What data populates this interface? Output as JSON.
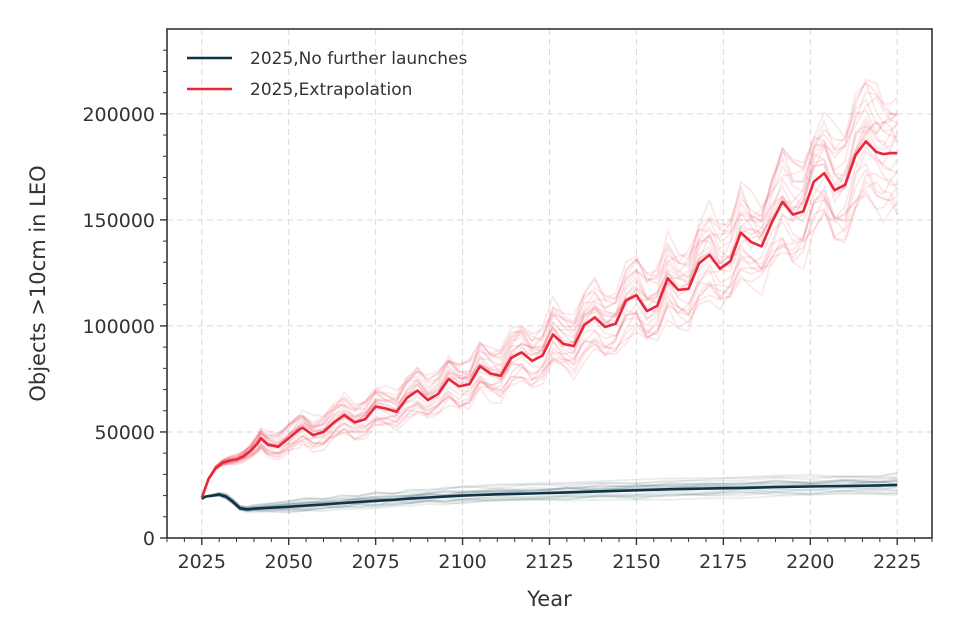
{
  "chart_data": {
    "type": "line",
    "xlabel": "Year",
    "ylabel": "Objects >10cm in LEO",
    "xlim": [
      2015,
      2235
    ],
    "ylim": [
      0,
      240000
    ],
    "x_ticks": [
      2025,
      2050,
      2075,
      2100,
      2125,
      2150,
      2175,
      2200,
      2225
    ],
    "y_ticks": [
      0,
      50000,
      100000,
      150000,
      200000
    ],
    "grid": true,
    "legend_position": "top-left",
    "series": [
      {
        "name": "2025,No further launches",
        "color": "#0d3447",
        "x": [
          2025,
          2026,
          2028,
          2030,
          2032,
          2034,
          2036,
          2038,
          2040,
          2045,
          2050,
          2055,
          2060,
          2065,
          2070,
          2075,
          2080,
          2085,
          2090,
          2095,
          2100,
          2110,
          2120,
          2130,
          2140,
          2150,
          2160,
          2170,
          2180,
          2190,
          2200,
          2210,
          2220,
          2225
        ],
        "values": [
          18500,
          19500,
          20000,
          20500,
          19500,
          17000,
          14000,
          13500,
          13800,
          14300,
          14700,
          15300,
          15800,
          16400,
          17000,
          17500,
          18000,
          18600,
          19100,
          19500,
          20000,
          20600,
          21000,
          21500,
          22000,
          22500,
          23000,
          23300,
          23600,
          24000,
          24300,
          24500,
          24800,
          25000
        ]
      },
      {
        "name": "2025,Extrapolation",
        "color": "#e8273a",
        "x": [
          2025,
          2027,
          2029,
          2031,
          2033,
          2035,
          2037,
          2039,
          2041,
          2042,
          2044,
          2047,
          2050,
          2053,
          2054,
          2057,
          2060,
          2063,
          2066,
          2069,
          2072,
          2075,
          2078,
          2081,
          2084,
          2087,
          2090,
          2093,
          2096,
          2099,
          2102,
          2105,
          2108,
          2111,
          2114,
          2117,
          2120,
          2123,
          2126,
          2129,
          2132,
          2135,
          2138,
          2141,
          2144,
          2147,
          2150,
          2153,
          2156,
          2159,
          2162,
          2165,
          2168,
          2171,
          2174,
          2177,
          2180,
          2183,
          2186,
          2189,
          2192,
          2195,
          2198,
          2201,
          2204,
          2207,
          2210,
          2213,
          2216,
          2219,
          2221,
          2223,
          2225
        ],
        "values": [
          19000,
          28000,
          33000,
          35500,
          36500,
          37000,
          38500,
          41000,
          44500,
          47000,
          44000,
          43000,
          47000,
          51000,
          52000,
          48500,
          50000,
          54500,
          58000,
          54500,
          56000,
          62000,
          61000,
          59500,
          66000,
          69500,
          65000,
          68000,
          75000,
          71500,
          72500,
          81000,
          77500,
          76500,
          85000,
          87500,
          83500,
          86000,
          96000,
          91500,
          90500,
          100500,
          104000,
          99500,
          101000,
          112000,
          114500,
          107000,
          109500,
          122500,
          117000,
          117500,
          129500,
          133500,
          127000,
          130500,
          144000,
          139500,
          137500,
          149000,
          158500,
          152500,
          154000,
          168000,
          172000,
          164000,
          166500,
          180500,
          187000,
          182000,
          181000,
          181500,
          181500
        ]
      }
    ]
  }
}
